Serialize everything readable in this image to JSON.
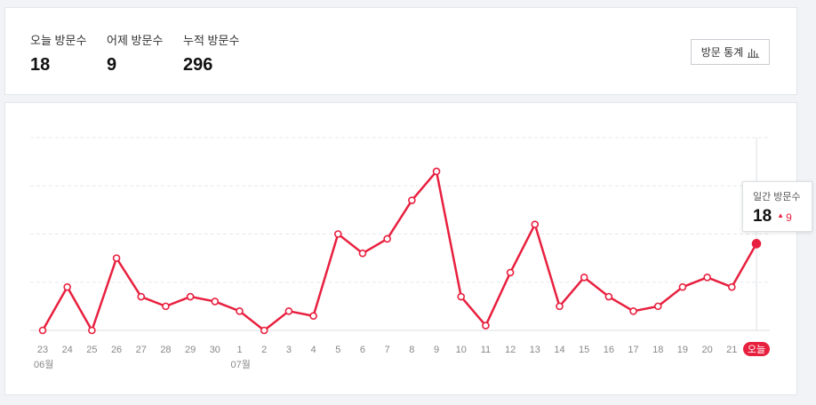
{
  "stats": {
    "today": {
      "label": "오늘 방문수",
      "value": "18"
    },
    "yesterday": {
      "label": "어제 방문수",
      "value": "9"
    },
    "total": {
      "label": "누적 방문수",
      "value": "296"
    }
  },
  "stats_button": {
    "label": "방문 통계",
    "icon": "bar-chart-icon"
  },
  "tooltip": {
    "label": "일간 방문수",
    "value": "18",
    "delta": "9",
    "delta_icon": "triangle-up-icon"
  },
  "colors": {
    "line": "#e8203f",
    "today_badge": "#e8203f",
    "grid": "#e6e8eb",
    "background": "#f1f3f6"
  },
  "chart_data": {
    "type": "line",
    "x_labels": [
      "23",
      "24",
      "25",
      "26",
      "27",
      "28",
      "29",
      "30",
      "1",
      "2",
      "3",
      "4",
      "5",
      "6",
      "7",
      "8",
      "9",
      "10",
      "11",
      "12",
      "13",
      "14",
      "15",
      "16",
      "17",
      "18",
      "19",
      "20",
      "21",
      "오늘"
    ],
    "month_labels": [
      {
        "index": 0,
        "label": "06월"
      },
      {
        "index": 8,
        "label": "07월"
      }
    ],
    "values": [
      0,
      9,
      0,
      15,
      7,
      5,
      7,
      6,
      4,
      0,
      4,
      3,
      20,
      16,
      19,
      27,
      33,
      7,
      1,
      12,
      22,
      5,
      11,
      7,
      4,
      5,
      9,
      11,
      9,
      18
    ],
    "ylim": [
      0,
      40
    ],
    "grid": true,
    "highlight_last": true
  }
}
